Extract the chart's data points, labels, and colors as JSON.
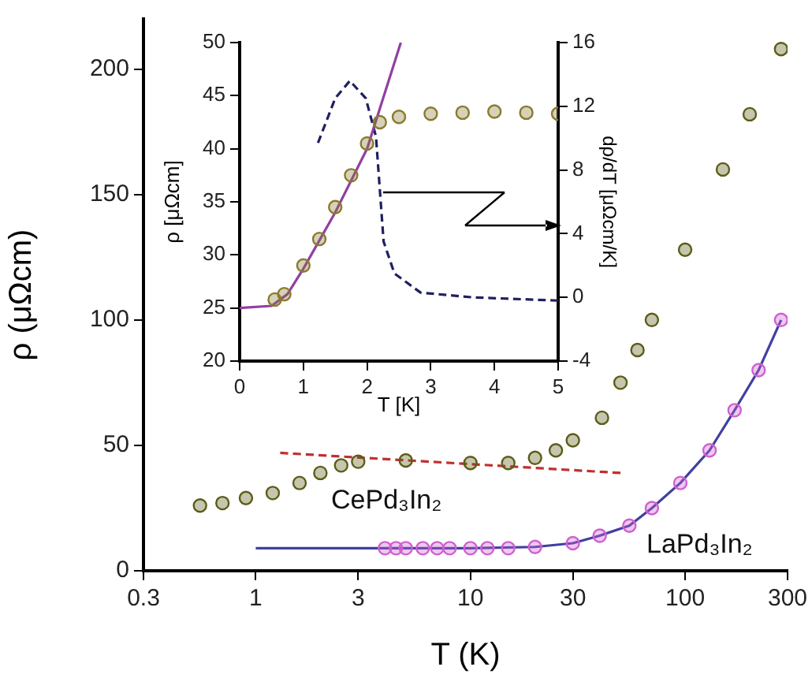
{
  "chart_data": [
    {
      "type": "scatter",
      "xlabel": "T (K)",
      "ylabel": "ρ (μΩcm)",
      "log": "x",
      "xlim": [
        0.3,
        300
      ],
      "xticks": [
        0.3,
        1,
        3,
        10,
        30,
        100,
        300
      ],
      "ylim": [
        0,
        220
      ],
      "yticks": [
        0,
        50,
        100,
        150,
        200
      ],
      "grid": false,
      "legend": false,
      "series": [
        {
          "name": "CePd₃In₂",
          "type": "scatter",
          "marker": "circle",
          "color": "#5c5c18",
          "x": [
            0.55,
            0.7,
            0.9,
            1.2,
            1.6,
            2,
            2.5,
            3,
            5,
            10,
            15,
            20,
            25,
            30,
            41,
            50,
            60,
            70,
            100,
            150,
            200,
            280
          ],
          "values": [
            26,
            27,
            29,
            31,
            35,
            39,
            42,
            43.5,
            44,
            43,
            43,
            45,
            48,
            52,
            61,
            75,
            88,
            100,
            128,
            160,
            182,
            208
          ]
        },
        {
          "name": "LaPd₃In₂",
          "type": "scatter",
          "marker": "circle",
          "color": "#d060d0",
          "x": [
            4,
            4.5,
            5,
            6,
            7,
            8,
            10,
            12,
            15,
            20,
            30,
            40,
            55,
            70,
            95,
            130,
            170,
            220,
            280
          ],
          "values": [
            9,
            9,
            9,
            9,
            9,
            9,
            9,
            9,
            9,
            9.5,
            11,
            14,
            18,
            25,
            35,
            48,
            64,
            80,
            100
          ]
        },
        {
          "type": "line",
          "marker": "none",
          "line_style": "solid",
          "color": "#4040a0",
          "x": [
            1,
            4,
            10,
            20,
            30,
            40,
            55,
            70,
            95,
            130,
            170,
            220,
            280
          ],
          "values": [
            9,
            9,
            9,
            9.5,
            11,
            14,
            18,
            25,
            35,
            48,
            64,
            80,
            100
          ]
        },
        {
          "type": "line",
          "marker": "none",
          "line_style": "dashed",
          "color": "#c03030",
          "x": [
            1.3,
            50
          ],
          "values": [
            47,
            39
          ]
        }
      ]
    },
    {
      "type": "scatter",
      "xlabel": "T [K]",
      "ylabel": "ρ [μΩcm]",
      "y2label": "dρ/dT [μΩcm/K]",
      "xlim": [
        0,
        5
      ],
      "xticks": [
        0,
        1,
        2,
        3,
        4,
        5
      ],
      "ylim": [
        20,
        50
      ],
      "yticks": [
        20,
        25,
        30,
        35,
        40,
        45,
        50
      ],
      "y2lim": [
        -4,
        16
      ],
      "y2ticks": [
        -4,
        0,
        4,
        8,
        12,
        16
      ],
      "grid": false,
      "legend": false,
      "series": [
        {
          "type": "scatter",
          "marker": "circle",
          "color": "#8a7a30",
          "x": [
            0.55,
            0.7,
            1,
            1.25,
            1.5,
            1.75,
            2,
            2.2,
            2.5,
            3,
            3.5,
            4,
            4.5,
            5
          ],
          "values": [
            25.8,
            26.3,
            29,
            31.5,
            34.5,
            37.5,
            40.5,
            42.5,
            43,
            43.3,
            43.4,
            43.5,
            43.4,
            43.3
          ]
        },
        {
          "type": "line",
          "marker": "none",
          "line_style": "solid",
          "color": "#9040a0",
          "x": [
            0,
            0.5,
            0.75,
            1,
            1.5,
            2,
            2.53
          ],
          "values": [
            25,
            25.2,
            26.3,
            28.7,
            34,
            40,
            50
          ]
        },
        {
          "type": "line",
          "axis": "y2",
          "marker": "none",
          "line_style": "dashed",
          "color": "#202060",
          "x": [
            1.23,
            1.5,
            1.73,
            1.98,
            2.14,
            2.26,
            2.43,
            2.84,
            3.66,
            5
          ],
          "values": [
            9.7,
            12.5,
            13.6,
            12.5,
            10.1,
            3.5,
            1.5,
            0.3,
            0,
            -0.2
          ]
        }
      ]
    }
  ]
}
